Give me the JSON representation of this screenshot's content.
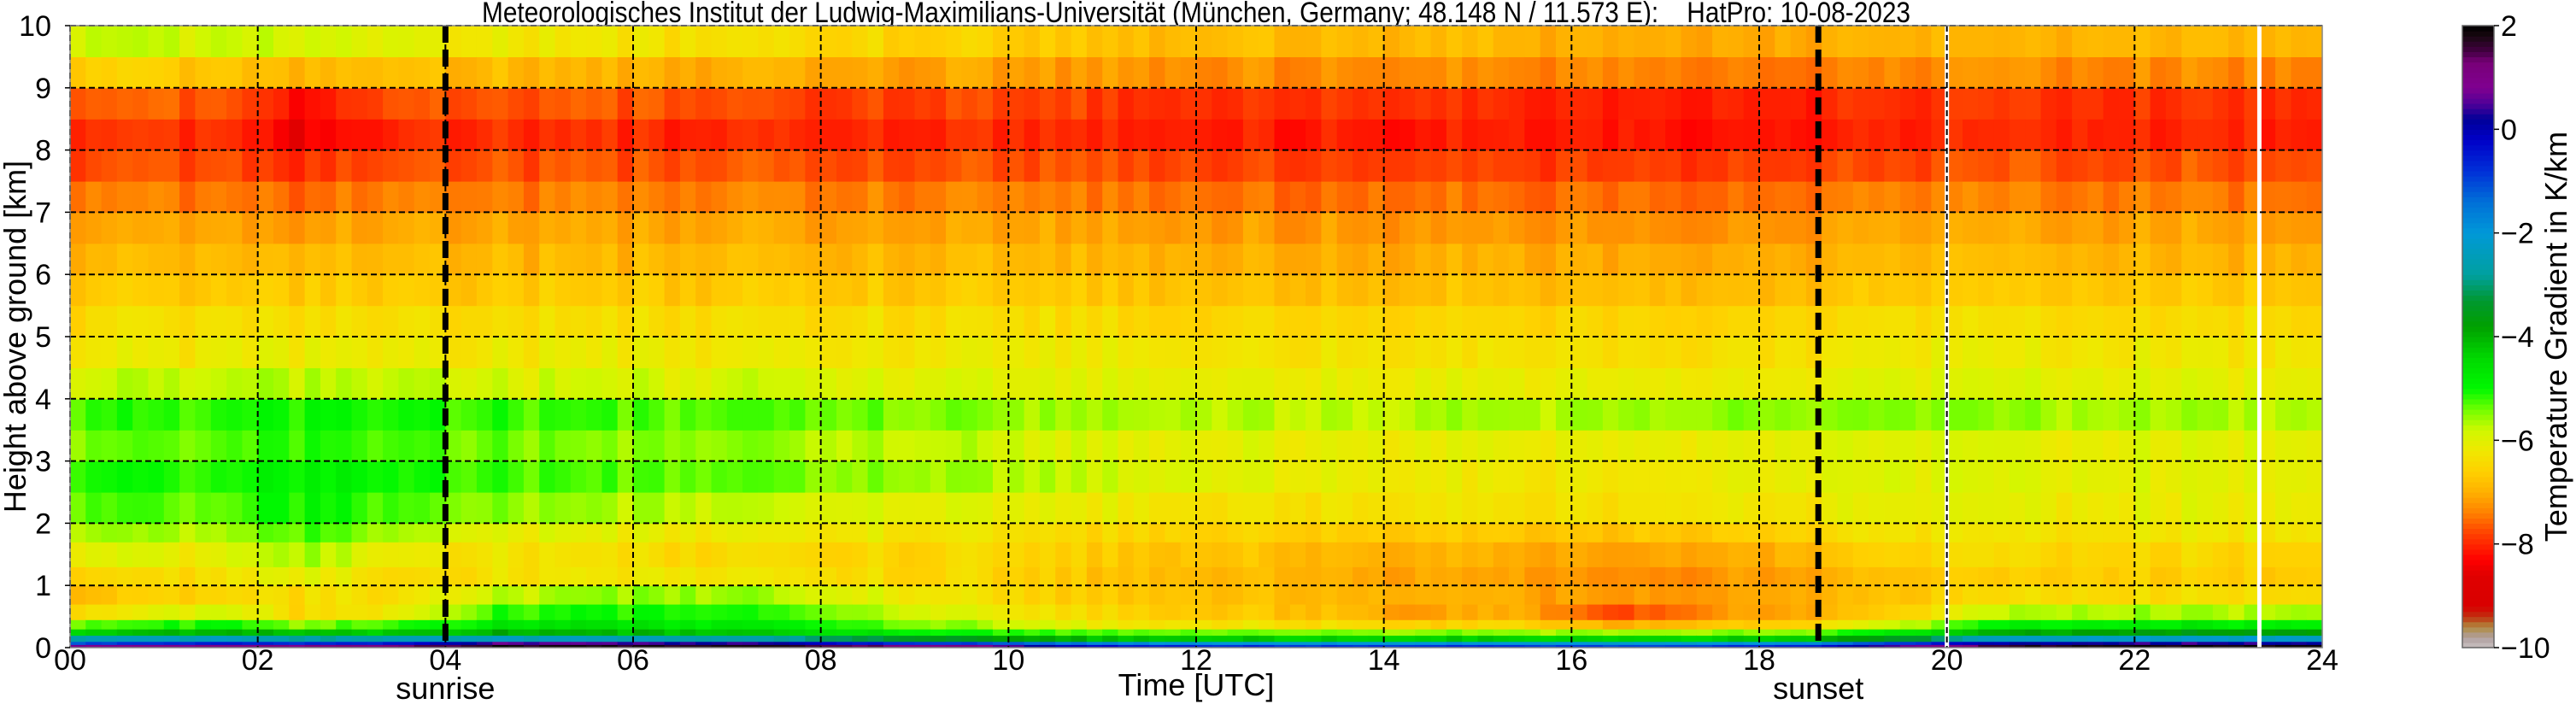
{
  "chart_data": {
    "type": "heatmap",
    "title": "Meteorologisches Institut der Ludwig-Maximilians-Universität (München, Germany; 48.148 N / 11.573 E):    HatPro: 10-08-2023",
    "xlabel": "Time [UTC]",
    "ylabel": "Height above ground [km]",
    "colorbar_label": "Temperature Gradient in K/km",
    "xlim": [
      0,
      24
    ],
    "ylim": [
      0,
      10
    ],
    "clim": [
      -10,
      2
    ],
    "x_ticks": [
      {
        "v": 0,
        "t": "00"
      },
      {
        "v": 2,
        "t": "02"
      },
      {
        "v": 4,
        "t": "04"
      },
      {
        "v": 6,
        "t": "06"
      },
      {
        "v": 8,
        "t": "08"
      },
      {
        "v": 10,
        "t": "10"
      },
      {
        "v": 12,
        "t": "12"
      },
      {
        "v": 14,
        "t": "14"
      },
      {
        "v": 16,
        "t": "16"
      },
      {
        "v": 18,
        "t": "18"
      },
      {
        "v": 20,
        "t": "20"
      },
      {
        "v": 22,
        "t": "22"
      },
      {
        "v": 24,
        "t": "24"
      }
    ],
    "y_ticks": [
      {
        "v": 0,
        "t": "0"
      },
      {
        "v": 1,
        "t": "1"
      },
      {
        "v": 2,
        "t": "2"
      },
      {
        "v": 3,
        "t": "3"
      },
      {
        "v": 4,
        "t": "4"
      },
      {
        "v": 5,
        "t": "5"
      },
      {
        "v": 6,
        "t": "6"
      },
      {
        "v": 7,
        "t": "7"
      },
      {
        "v": 8,
        "t": "8"
      },
      {
        "v": 9,
        "t": "9"
      },
      {
        "v": 10,
        "t": "10"
      }
    ],
    "colorbar_ticks": [
      {
        "v": 2,
        "t": "2"
      },
      {
        "v": 0,
        "t": "0"
      },
      {
        "v": -2,
        "t": "−2"
      },
      {
        "v": -4,
        "t": "−4"
      },
      {
        "v": -6,
        "t": "−6"
      },
      {
        "v": -8,
        "t": "−8"
      },
      {
        "v": -10,
        "t": "−10"
      }
    ],
    "grid": true,
    "annotations": [
      {
        "label": "sunrise",
        "time_utc": 4.0
      },
      {
        "label": "sunset",
        "time_utc": 18.63
      }
    ],
    "missing_data_times_utc": [
      20.0,
      23.33
    ],
    "colormap": [
      [
        -10,
        "#c8c0c0"
      ],
      [
        -9.8,
        "#b0a0a0"
      ],
      [
        -9.6,
        "#b08a40"
      ],
      [
        -9.4,
        "#c03010"
      ],
      [
        -9.2,
        "#d80000"
      ],
      [
        -8.6,
        "#e00000"
      ],
      [
        -8.3,
        "#ff0000"
      ],
      [
        -7.8,
        "#ff4000"
      ],
      [
        -7.4,
        "#ff8000"
      ],
      [
        -7.0,
        "#ffb000"
      ],
      [
        -6.6,
        "#ffd000"
      ],
      [
        -6.2,
        "#f0e800"
      ],
      [
        -5.8,
        "#d0f800"
      ],
      [
        -5.4,
        "#70ff00"
      ],
      [
        -5.0,
        "#00f800"
      ],
      [
        -4.4,
        "#00d800"
      ],
      [
        -3.8,
        "#00a000"
      ],
      [
        -3.3,
        "#009830"
      ],
      [
        -2.8,
        "#00a0a0"
      ],
      [
        -2.0,
        "#0098d8"
      ],
      [
        -1.4,
        "#0070d8"
      ],
      [
        -0.8,
        "#0030d8"
      ],
      [
        -0.2,
        "#0000c8"
      ],
      [
        0.2,
        "#000098"
      ],
      [
        0.5,
        "#500098"
      ],
      [
        0.8,
        "#800090"
      ],
      [
        1.3,
        "#780078"
      ],
      [
        1.5,
        "#440044"
      ],
      [
        1.8,
        "#180810"
      ],
      [
        2.0,
        "#000000"
      ]
    ],
    "hours_utc": [
      0.5,
      1.5,
      2.5,
      3.5,
      4.5,
      5.5,
      6.5,
      7.5,
      8.5,
      9.5,
      10.5,
      11.5,
      12.5,
      13.5,
      14.5,
      15.5,
      16.5,
      17.5,
      18.5,
      19.5,
      20.5,
      21.5,
      22.5,
      23.5
    ],
    "height_band_bottoms_km": [
      0,
      0.05,
      0.1,
      0.2,
      0.3,
      0.45,
      0.7,
      1.0,
      1.3,
      1.7,
      2.0,
      2.5,
      3.0,
      3.5,
      4.0,
      4.5,
      5.0,
      5.5,
      6.0,
      6.5,
      7.0,
      7.5,
      8.0,
      8.5,
      9.0,
      9.5
    ],
    "values_K_per_km": [
      [
        0.8,
        1.0,
        1.0,
        1.2,
        1.8,
        1.8,
        1.8,
        1.7,
        1.4,
        1.0,
        0.0,
        -0.5,
        -0.8,
        -0.8,
        -0.8,
        -0.8,
        -1.0,
        -0.8,
        -0.5,
        0.5,
        1.5,
        1.9,
        1.9,
        1.9
      ],
      [
        -1.0,
        -0.5,
        -0.8,
        -0.5,
        0.5,
        0.5,
        0.4,
        0.2,
        -0.5,
        -1.0,
        -1.5,
        -1.8,
        -2.0,
        -2.0,
        -2.0,
        -2.0,
        -2.1,
        -2.0,
        -1.8,
        -1.0,
        0.0,
        0.3,
        0.3,
        0.3
      ],
      [
        -2.5,
        -2.4,
        -2.8,
        -2.6,
        -2.4,
        -2.5,
        -2.6,
        -2.8,
        -3.2,
        -3.6,
        -4.0,
        -4.2,
        -4.3,
        -4.3,
        -4.3,
        -4.3,
        -4.4,
        -4.3,
        -4.2,
        -3.5,
        -2.5,
        -2.2,
        -2.2,
        -2.2
      ],
      [
        -4.3,
        -4.0,
        -4.2,
        -4.3,
        -4.0,
        -4.1,
        -4.1,
        -4.3,
        -4.6,
        -5.0,
        -5.2,
        -5.3,
        -5.4,
        -5.4,
        -5.5,
        -5.5,
        -5.6,
        -5.5,
        -5.4,
        -4.8,
        -4.0,
        -3.8,
        -3.7,
        -3.7
      ],
      [
        -5.3,
        -5.0,
        -5.5,
        -5.2,
        -4.8,
        -4.6,
        -4.7,
        -4.9,
        -5.2,
        -5.6,
        -6.0,
        -6.2,
        -6.3,
        -6.4,
        -6.6,
        -6.5,
        -7.0,
        -6.7,
        -6.5,
        -5.8,
        -5.0,
        -4.8,
        -4.8,
        -4.8
      ],
      [
        -6.3,
        -5.8,
        -6.5,
        -6.2,
        -5.2,
        -5.1,
        -5.0,
        -5.2,
        -5.6,
        -6.0,
        -6.4,
        -6.6,
        -6.7,
        -6.8,
        -7.2,
        -7.0,
        -7.8,
        -7.2,
        -7.0,
        -6.6,
        -5.8,
        -5.6,
        -5.6,
        -5.6
      ],
      [
        -6.8,
        -6.5,
        -6.4,
        -6.4,
        -5.8,
        -5.6,
        -5.5,
        -5.7,
        -6.0,
        -6.3,
        -6.6,
        -6.7,
        -6.8,
        -6.9,
        -7.0,
        -7.0,
        -7.2,
        -7.1,
        -7.0,
        -6.8,
        -6.5,
        -6.4,
        -6.4,
        -6.4
      ],
      [
        -6.5,
        -6.4,
        -6.0,
        -6.5,
        -6.3,
        -6.3,
        -6.2,
        -6.3,
        -6.4,
        -6.5,
        -6.7,
        -6.8,
        -6.9,
        -7.0,
        -7.1,
        -7.1,
        -7.3,
        -7.2,
        -7.1,
        -6.8,
        -6.7,
        -6.6,
        -6.6,
        -6.6
      ],
      [
        -6.0,
        -6.1,
        -5.6,
        -6.2,
        -6.3,
        -6.4,
        -6.4,
        -6.5,
        -6.5,
        -6.5,
        -6.6,
        -6.7,
        -6.8,
        -6.9,
        -7.0,
        -7.0,
        -7.1,
        -7.0,
        -6.9,
        -6.6,
        -6.5,
        -6.5,
        -6.5,
        -6.5
      ],
      [
        -5.6,
        -5.7,
        -5.2,
        -5.7,
        -6.0,
        -6.1,
        -6.1,
        -6.2,
        -6.2,
        -6.3,
        -6.4,
        -6.5,
        -6.5,
        -6.6,
        -6.7,
        -6.7,
        -6.7,
        -6.6,
        -6.5,
        -6.3,
        -6.3,
        -6.3,
        -6.2,
        -6.2
      ],
      [
        -5.3,
        -5.4,
        -5.0,
        -5.3,
        -5.5,
        -5.6,
        -5.7,
        -5.8,
        -5.9,
        -6.0,
        -6.1,
        -6.2,
        -6.3,
        -6.3,
        -6.3,
        -6.3,
        -6.3,
        -6.2,
        -6.2,
        -6.1,
        -6.1,
        -6.1,
        -6.1,
        -6.1
      ],
      [
        -5.1,
        -5.2,
        -4.9,
        -5.1,
        -5.2,
        -5.3,
        -5.3,
        -5.4,
        -5.5,
        -5.6,
        -5.8,
        -5.9,
        -6.0,
        -6.1,
        -6.2,
        -6.2,
        -6.2,
        -6.1,
        -6.0,
        -6.0,
        -6.0,
        -6.0,
        -6.0,
        -6.0
      ],
      [
        -5.4,
        -5.4,
        -5.1,
        -5.3,
        -5.4,
        -5.5,
        -5.5,
        -5.6,
        -5.7,
        -5.8,
        -5.9,
        -6.0,
        -6.0,
        -6.1,
        -6.1,
        -6.1,
        -6.1,
        -6.0,
        -6.0,
        -6.0,
        -6.0,
        -6.0,
        -6.0,
        -6.0
      ],
      [
        -5.2,
        -5.2,
        -5.0,
        -5.1,
        -5.2,
        -5.2,
        -5.3,
        -5.3,
        -5.4,
        -5.5,
        -5.6,
        -5.6,
        -5.7,
        -5.7,
        -5.7,
        -5.6,
        -5.6,
        -5.5,
        -5.5,
        -5.5,
        -5.6,
        -5.6,
        -5.6,
        -5.6
      ],
      [
        -5.8,
        -5.8,
        -5.7,
        -5.8,
        -5.9,
        -5.9,
        -5.9,
        -5.9,
        -5.9,
        -6.0,
        -6.0,
        -6.0,
        -6.1,
        -6.1,
        -6.1,
        -6.1,
        -6.1,
        -6.1,
        -6.1,
        -6.0,
        -6.0,
        -6.0,
        -6.0,
        -6.0
      ],
      [
        -6.2,
        -6.2,
        -6.1,
        -6.2,
        -6.2,
        -6.2,
        -6.2,
        -6.2,
        -6.2,
        -6.2,
        -6.2,
        -6.2,
        -6.3,
        -6.3,
        -6.3,
        -6.3,
        -6.3,
        -6.3,
        -6.3,
        -6.2,
        -6.2,
        -6.2,
        -6.2,
        -6.2
      ],
      [
        -6.4,
        -6.4,
        -6.4,
        -6.4,
        -6.4,
        -6.4,
        -6.4,
        -6.4,
        -6.4,
        -6.4,
        -6.4,
        -6.5,
        -6.5,
        -6.5,
        -6.5,
        -6.5,
        -6.5,
        -6.5,
        -6.5,
        -6.4,
        -6.4,
        -6.4,
        -6.4,
        -6.4
      ],
      [
        -6.7,
        -6.7,
        -6.7,
        -6.7,
        -6.7,
        -6.7,
        -6.7,
        -6.7,
        -6.7,
        -6.7,
        -6.7,
        -6.7,
        -6.8,
        -6.8,
        -6.8,
        -6.8,
        -6.8,
        -6.8,
        -6.8,
        -6.7,
        -6.7,
        -6.7,
        -6.7,
        -6.7
      ],
      [
        -6.9,
        -6.9,
        -6.9,
        -6.9,
        -6.9,
        -6.9,
        -6.9,
        -6.9,
        -6.9,
        -6.9,
        -6.9,
        -6.9,
        -7.0,
        -7.0,
        -7.0,
        -7.0,
        -7.0,
        -7.0,
        -7.0,
        -6.9,
        -6.9,
        -6.9,
        -6.9,
        -6.9
      ],
      [
        -7.1,
        -7.1,
        -7.2,
        -7.1,
        -7.1,
        -7.1,
        -7.1,
        -7.1,
        -7.1,
        -7.1,
        -7.1,
        -7.1,
        -7.2,
        -7.2,
        -7.2,
        -7.2,
        -7.2,
        -7.2,
        -7.2,
        -7.1,
        -7.1,
        -7.1,
        -7.1,
        -7.1
      ],
      [
        -7.4,
        -7.4,
        -7.6,
        -7.4,
        -7.4,
        -7.4,
        -7.4,
        -7.4,
        -7.4,
        -7.4,
        -7.4,
        -7.4,
        -7.5,
        -7.5,
        -7.5,
        -7.5,
        -7.5,
        -7.5,
        -7.5,
        -7.4,
        -7.4,
        -7.4,
        -7.4,
        -7.4
      ],
      [
        -7.7,
        -7.7,
        -8.0,
        -7.7,
        -7.7,
        -7.7,
        -7.7,
        -7.7,
        -7.7,
        -7.7,
        -7.7,
        -7.7,
        -7.8,
        -7.8,
        -7.8,
        -7.8,
        -7.8,
        -7.8,
        -7.8,
        -7.8,
        -7.7,
        -7.7,
        -7.7,
        -7.7
      ],
      [
        -7.9,
        -7.9,
        -8.5,
        -8.0,
        -8.0,
        -8.0,
        -8.0,
        -8.0,
        -8.0,
        -8.0,
        -8.0,
        -8.0,
        -8.1,
        -8.1,
        -8.1,
        -8.1,
        -8.1,
        -8.1,
        -8.1,
        -8.1,
        -8.0,
        -8.0,
        -8.0,
        -8.0
      ],
      [
        -7.6,
        -7.6,
        -8.3,
        -7.7,
        -7.7,
        -7.7,
        -7.7,
        -7.8,
        -7.8,
        -7.8,
        -7.8,
        -7.9,
        -7.9,
        -7.9,
        -7.9,
        -8.0,
        -8.0,
        -8.0,
        -8.0,
        -8.0,
        -7.9,
        -7.9,
        -7.9,
        -7.9
      ],
      [
        -6.6,
        -6.7,
        -7.0,
        -6.8,
        -6.9,
        -7.0,
        -7.0,
        -7.0,
        -7.1,
        -7.1,
        -7.2,
        -7.2,
        -7.3,
        -7.3,
        -7.3,
        -7.3,
        -7.3,
        -7.4,
        -7.4,
        -7.4,
        -7.3,
        -7.3,
        -7.3,
        -7.3
      ],
      [
        -5.8,
        -5.8,
        -5.9,
        -6.0,
        -6.2,
        -6.3,
        -6.3,
        -6.4,
        -6.5,
        -6.6,
        -6.7,
        -6.8,
        -6.8,
        -6.9,
        -6.9,
        -6.9,
        -7.0,
        -7.0,
        -7.0,
        -7.0,
        -7.0,
        -6.9,
        -6.9,
        -6.9
      ]
    ]
  }
}
